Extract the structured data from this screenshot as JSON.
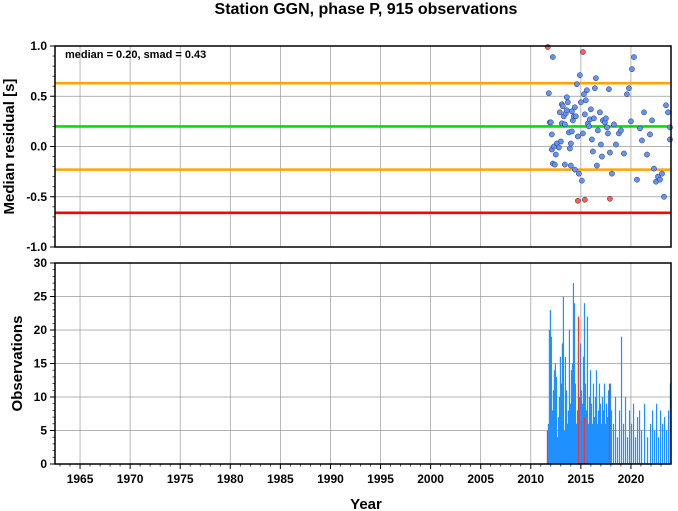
{
  "title": "Station GGN, phase P, 915 observations",
  "xlabel": "Year",
  "chart_data": [
    {
      "type": "scatter",
      "ylabel": "Median residual [s]",
      "annotation": "median = 0.20, smad = 0.43",
      "xlim": [
        1962.5,
        2024
      ],
      "ylim": [
        -1.0,
        1.0
      ],
      "x_ticks": [
        1965,
        1970,
        1975,
        1980,
        1985,
        1990,
        1995,
        2000,
        2005,
        2010,
        2015,
        2020
      ],
      "x_tick_labels": [
        "1965",
        "1970",
        "1975",
        "1980",
        "1985",
        "1990",
        "1995",
        "2000",
        "2005",
        "2010",
        "2015",
        "2020"
      ],
      "y_ticks": [
        1.0,
        0.5,
        0.0,
        -0.5,
        -1.0
      ],
      "y_tick_labels": [
        "1.0",
        "0.5",
        "0.0",
        "-0.5",
        "-1.0"
      ],
      "grid": true,
      "reference_lines": [
        {
          "value": 0.63,
          "color": "#ffa500"
        },
        {
          "value": 0.2,
          "color": "#00e000"
        },
        {
          "value": -0.23,
          "color": "#ffa500"
        },
        {
          "value": -0.66,
          "color": "#ff0000"
        }
      ],
      "series": [
        {
          "color": "#6495ed",
          "x": [
            2011.8,
            2011.9,
            2012.0,
            2012.1,
            2012.1,
            2012.2,
            2012.2,
            2012.3,
            2012.4,
            2012.5,
            2012.6,
            2012.8,
            2012.9,
            2013.0,
            2013.1,
            2013.1,
            2013.2,
            2013.3,
            2013.4,
            2013.4,
            2013.5,
            2013.6,
            2013.6,
            2013.7,
            2013.8,
            2013.9,
            2014.0,
            2014.0,
            2014.1,
            2014.1,
            2014.2,
            2014.3,
            2014.4,
            2014.4,
            2014.5,
            2014.6,
            2014.7,
            2014.8,
            2014.9,
            2015.0,
            2015.1,
            2015.2,
            2015.3,
            2015.4,
            2015.5,
            2015.6,
            2015.7,
            2015.8,
            2015.9,
            2016.0,
            2016.1,
            2016.2,
            2016.3,
            2016.4,
            2016.5,
            2016.6,
            2016.7,
            2016.9,
            2017.0,
            2017.1,
            2017.2,
            2017.4,
            2017.5,
            2017.6,
            2017.7,
            2017.8,
            2017.9,
            2018.1,
            2018.3,
            2018.5,
            2018.8,
            2019.0,
            2019.3,
            2019.6,
            2019.8,
            2020.0,
            2020.1,
            2020.3,
            2020.6,
            2020.9,
            2021.1,
            2021.3,
            2021.6,
            2021.9,
            2022.1,
            2022.3,
            2022.5,
            2022.7,
            2022.9,
            2023.1,
            2023.3,
            2023.5,
            2023.7,
            2023.9,
            2024.0
          ],
          "y": [
            0.53,
            0.24,
            0.24,
            -0.03,
            0.12,
            -0.17,
            0.89,
            0.0,
            -0.18,
            -0.08,
            0.03,
            -0.01,
            0.34,
            0.05,
            0.23,
            0.42,
            0.4,
            0.3,
            -0.18,
            0.22,
            0.33,
            0.49,
            0.36,
            0.44,
            0.14,
            -0.02,
            0.03,
            -0.19,
            0.15,
            0.35,
            0.26,
            0.3,
            0.39,
            -0.23,
            0.3,
            0.62,
            0.1,
            -0.27,
            0.71,
            0.44,
            -0.34,
            0.13,
            0.52,
            0.32,
            0.46,
            0.56,
            0.23,
            0.2,
            0.27,
            0.37,
            0.07,
            -0.05,
            0.28,
            0.58,
            0.68,
            -0.19,
            0.16,
            0.34,
            0.02,
            -0.1,
            0.26,
            0.24,
            0.28,
            0.19,
            0.13,
            0.57,
            -0.06,
            -0.27,
            0.22,
            0.02,
            0.13,
            0.16,
            -0.07,
            0.52,
            0.58,
            0.25,
            0.77,
            0.89,
            -0.33,
            0.18,
            0.06,
            0.34,
            -0.08,
            0.12,
            0.26,
            -0.22,
            -0.35,
            -0.3,
            -0.33,
            -0.27,
            -0.5,
            0.41,
            0.34,
            0.19,
            0.07
          ]
        },
        {
          "color": "#ff6040",
          "x": [
            2011.7,
            2015.2,
            2014.7,
            2015.4,
            2017.9
          ],
          "y": [
            0.99,
            0.94,
            -0.54,
            -0.53,
            -0.52
          ]
        }
      ]
    },
    {
      "type": "bar",
      "ylabel": "Observations",
      "xlim": [
        1962.5,
        2024
      ],
      "ylim": [
        0,
        30
      ],
      "x_ticks": [
        1965,
        1970,
        1975,
        1980,
        1985,
        1990,
        1995,
        2000,
        2005,
        2010,
        2015,
        2020
      ],
      "x_tick_labels": [
        "1965",
        "1970",
        "1975",
        "1980",
        "1985",
        "1990",
        "1995",
        "2000",
        "2005",
        "2010",
        "2015",
        "2020"
      ],
      "y_ticks": [
        0,
        5,
        10,
        15,
        20,
        25,
        30
      ],
      "y_tick_labels": [
        "0",
        "5",
        "10",
        "15",
        "20",
        "25",
        "30"
      ],
      "grid": true,
      "series": [
        {
          "color": "#1e90ff",
          "x": [
            2011.7,
            2011.8,
            2011.9,
            2012.0,
            2012.1,
            2012.2,
            2012.3,
            2012.4,
            2012.5,
            2012.6,
            2012.7,
            2012.8,
            2012.9,
            2013.0,
            2013.1,
            2013.2,
            2013.3,
            2013.4,
            2013.5,
            2013.6,
            2013.7,
            2013.8,
            2013.9,
            2014.0,
            2014.1,
            2014.2,
            2014.3,
            2014.4,
            2014.5,
            2014.6,
            2014.7,
            2014.8,
            2014.9,
            2015.0,
            2015.1,
            2015.2,
            2015.3,
            2015.4,
            2015.5,
            2015.6,
            2015.7,
            2015.8,
            2015.9,
            2016.0,
            2016.1,
            2016.2,
            2016.3,
            2016.4,
            2016.5,
            2016.6,
            2016.7,
            2016.8,
            2016.9,
            2017.0,
            2017.1,
            2017.2,
            2017.3,
            2017.4,
            2017.5,
            2017.6,
            2017.7,
            2017.8,
            2017.9,
            2018.0,
            2018.2,
            2018.4,
            2018.6,
            2018.8,
            2019.0,
            2019.2,
            2019.4,
            2019.6,
            2019.8,
            2020.0,
            2020.2,
            2020.4,
            2020.6,
            2020.8,
            2021.0,
            2021.3,
            2021.6,
            2021.9,
            2022.1,
            2022.3,
            2022.5,
            2022.7,
            2022.9,
            2023.1,
            2023.3,
            2023.5,
            2023.7,
            2023.9
          ],
          "y": [
            6,
            20,
            23,
            19,
            8,
            11,
            14,
            15,
            13,
            4,
            7,
            10,
            16,
            12,
            18,
            25,
            5,
            16,
            11,
            6,
            8,
            20,
            9,
            14,
            15,
            27,
            24,
            12,
            6,
            8,
            17,
            10,
            18,
            11,
            9,
            16,
            24,
            12,
            8,
            22,
            6,
            10,
            14,
            9,
            6,
            12,
            7,
            10,
            14,
            6,
            8,
            12,
            9,
            6,
            10,
            8,
            12,
            6,
            9,
            7,
            11,
            5,
            12,
            8,
            6,
            10,
            4,
            8,
            19,
            6,
            10,
            4,
            8,
            6,
            9,
            4,
            7,
            8,
            5,
            9,
            4,
            6,
            8,
            5,
            9,
            4,
            8,
            6,
            7,
            5,
            8,
            12
          ]
        },
        {
          "color": "#ff3030",
          "x": [
            2011.6,
            2014.7,
            2015.3,
            2017.8
          ],
          "y": [
            5,
            22,
            7,
            12
          ]
        }
      ]
    }
  ]
}
